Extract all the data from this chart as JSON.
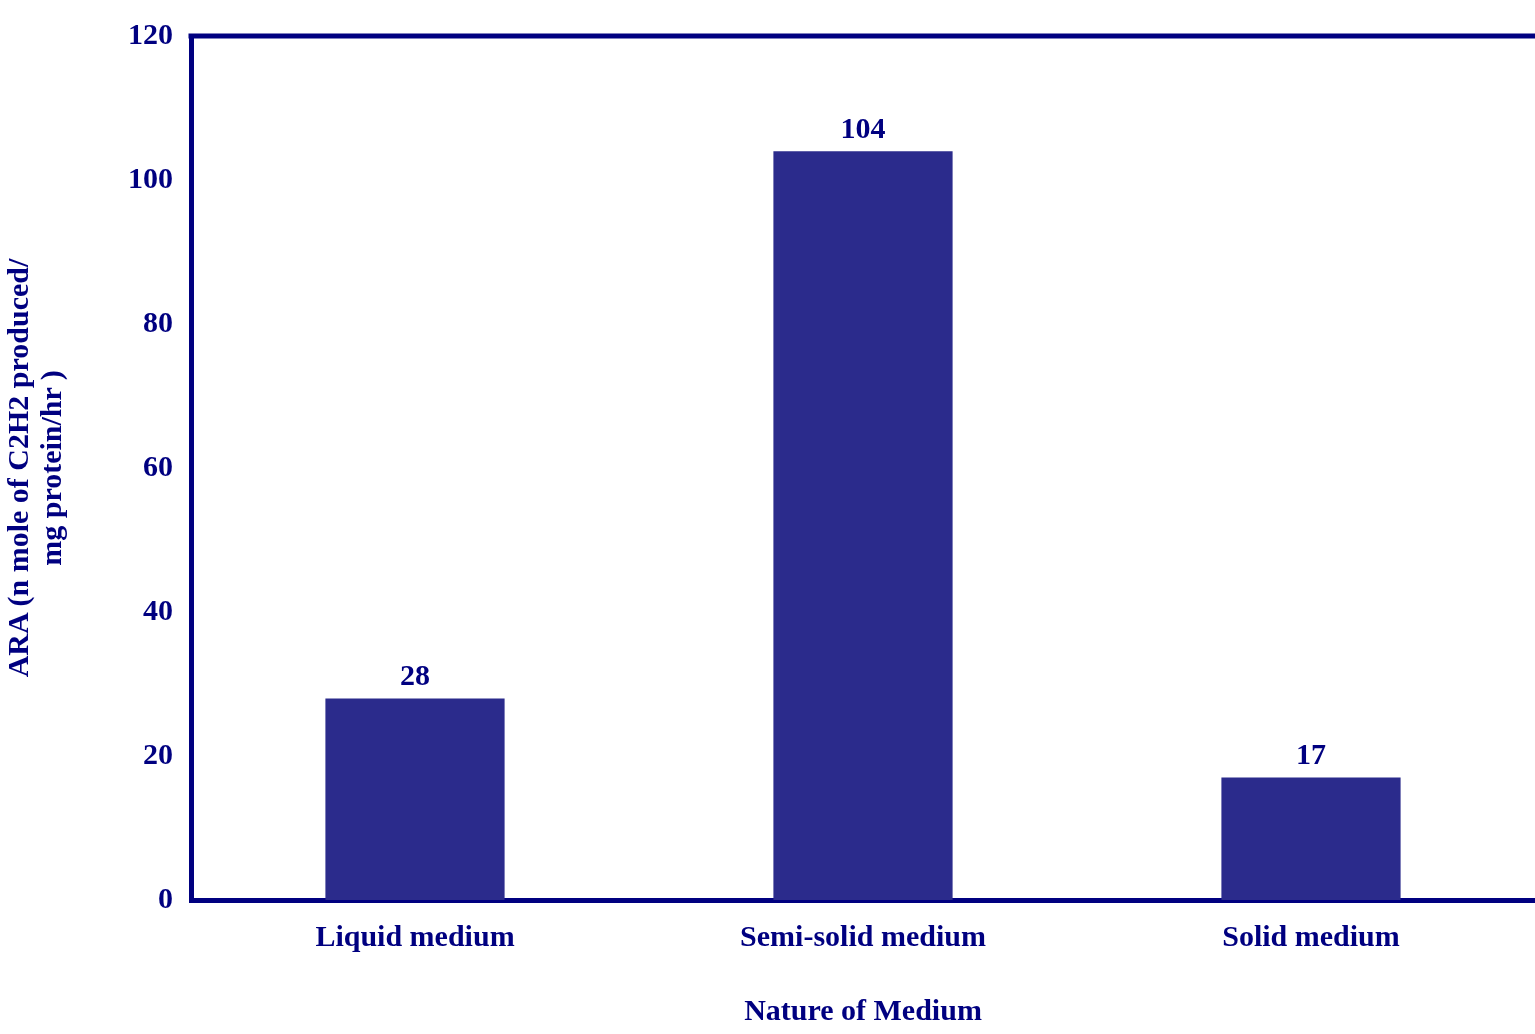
{
  "chart_data": {
    "type": "bar",
    "xlabel": "Nature of Medium",
    "ylabel": "ARA (n mole of C2H2 produced/\nmg protein/hr )",
    "categories": [
      "Liquid medium",
      "Semi-solid medium",
      "Solid medium"
    ],
    "values": [
      28,
      104,
      17
    ],
    "color": "#2b2b8c",
    "data_labels": true,
    "ylim": [
      0,
      120
    ],
    "yticks": [
      0,
      20,
      40,
      60,
      80,
      100,
      120
    ],
    "grid": false,
    "legend": false
  }
}
